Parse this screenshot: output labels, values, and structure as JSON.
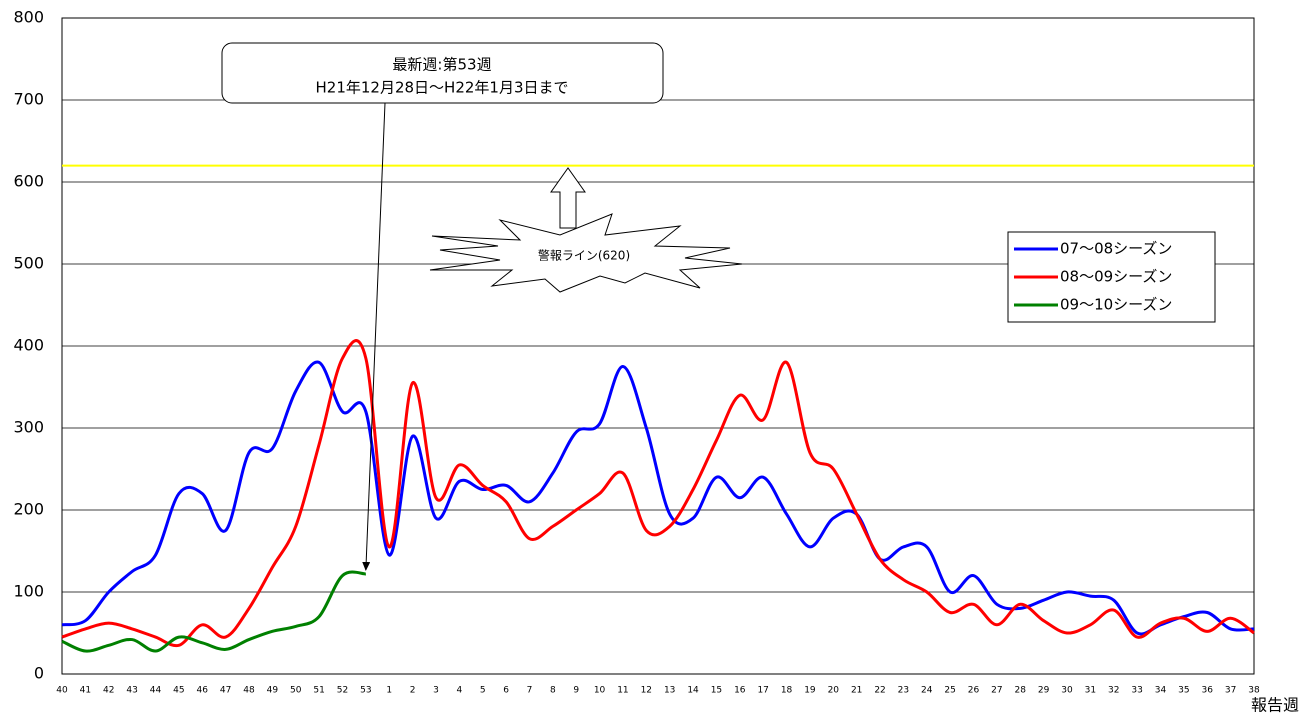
{
  "chart_data": {
    "type": "line",
    "categories": [
      "40",
      "41",
      "42",
      "43",
      "44",
      "45",
      "46",
      "47",
      "48",
      "49",
      "50",
      "51",
      "52",
      "53",
      "1",
      "2",
      "3",
      "4",
      "5",
      "6",
      "7",
      "8",
      "9",
      "10",
      "11",
      "12",
      "13",
      "14",
      "15",
      "16",
      "17",
      "18",
      "19",
      "20",
      "21",
      "22",
      "23",
      "24",
      "25",
      "26",
      "27",
      "28",
      "29",
      "30",
      "31",
      "32",
      "33",
      "34",
      "35",
      "36",
      "37",
      "38"
    ],
    "series": [
      {
        "name": "07～08シーズン",
        "color": "#0000ff",
        "values": [
          60,
          65,
          100,
          125,
          145,
          220,
          220,
          175,
          270,
          275,
          345,
          380,
          320,
          320,
          145,
          290,
          190,
          235,
          225,
          230,
          210,
          245,
          295,
          305,
          375,
          300,
          195,
          190,
          240,
          215,
          240,
          195,
          155,
          190,
          195,
          140,
          155,
          155,
          100,
          120,
          85,
          80,
          90,
          100,
          95,
          90,
          50,
          60,
          70,
          75,
          55,
          55
        ]
      },
      {
        "name": "08～09シーズン",
        "color": "#ff0000",
        "values": [
          45,
          55,
          62,
          55,
          45,
          35,
          60,
          45,
          80,
          130,
          180,
          280,
          385,
          385,
          155,
          355,
          215,
          255,
          230,
          210,
          165,
          180,
          200,
          220,
          245,
          175,
          180,
          225,
          285,
          340,
          310,
          380,
          270,
          250,
          195,
          140,
          115,
          100,
          75,
          85,
          60,
          85,
          65,
          50,
          60,
          78,
          45,
          62,
          68,
          52,
          68,
          50
        ]
      },
      {
        "name": "09～10シーズン",
        "color": "#008000",
        "values": [
          40,
          28,
          35,
          42,
          28,
          45,
          38,
          30,
          42,
          52,
          58,
          70,
          120,
          122,
          null,
          null,
          null,
          null,
          null,
          null,
          null,
          null,
          null,
          null,
          null,
          null,
          null,
          null,
          null,
          null,
          null,
          null,
          null,
          null,
          null,
          null,
          null,
          null,
          null,
          null,
          null,
          null,
          null,
          null,
          null,
          null,
          null,
          null,
          null,
          null,
          null,
          null
        ]
      }
    ],
    "ylim": [
      0,
      800
    ],
    "yticks": [
      0,
      100,
      200,
      300,
      400,
      500,
      600,
      700,
      800
    ],
    "grid": true,
    "x_label": "報告週",
    "alert_line": {
      "value": 620,
      "color": "#ffff00"
    },
    "alert_label": "警報ライン(620)",
    "callout": [
      "最新週:第53週",
      "H21年12月28日～H22年1月3日まで"
    ],
    "legend_position": "right"
  }
}
